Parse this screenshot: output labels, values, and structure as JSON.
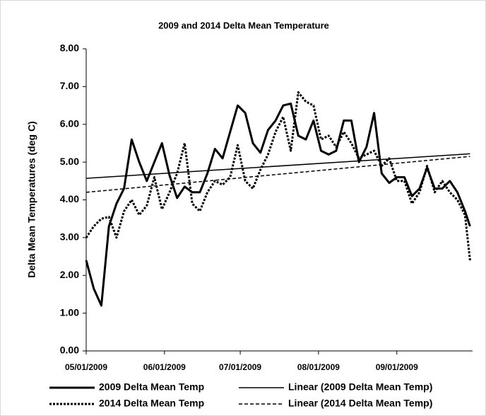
{
  "chart_data": {
    "type": "line",
    "title": "2009 and 2014 Delta Mean Temperature",
    "y_label": "Delta Mean Temperatures (deg C)",
    "x": [
      "05/01/2009",
      "05/04/2009",
      "05/07/2009",
      "05/10/2009",
      "05/13/2009",
      "05/16/2009",
      "05/19/2009",
      "05/22/2009",
      "05/25/2009",
      "05/28/2009",
      "05/31/2009",
      "06/03/2009",
      "06/06/2009",
      "06/09/2009",
      "06/12/2009",
      "06/15/2009",
      "06/18/2009",
      "06/21/2009",
      "06/24/2009",
      "06/27/2009",
      "06/30/2009",
      "07/03/2009",
      "07/06/2009",
      "07/09/2009",
      "07/12/2009",
      "07/15/2009",
      "07/18/2009",
      "07/21/2009",
      "07/24/2009",
      "07/27/2009",
      "07/30/2009",
      "08/02/2009",
      "08/05/2009",
      "08/08/2009",
      "08/11/2009",
      "08/14/2009",
      "08/17/2009",
      "08/20/2009",
      "08/23/2009",
      "08/26/2009",
      "08/29/2009",
      "09/01/2009",
      "09/04/2009",
      "09/07/2009",
      "09/10/2009",
      "09/13/2009",
      "09/16/2009",
      "09/19/2009",
      "09/22/2009",
      "09/25/2009",
      "09/28/2009",
      "09/30/2009"
    ],
    "series": [
      {
        "name": "2009 Delta Mean Temp",
        "color": "#000000",
        "width": 3,
        "dash": "none",
        "values": [
          2.4,
          1.65,
          1.2,
          3.3,
          3.9,
          4.3,
          5.6,
          5.0,
          4.5,
          5.0,
          5.5,
          4.65,
          4.05,
          4.35,
          4.2,
          4.2,
          4.7,
          5.35,
          5.1,
          5.8,
          6.5,
          6.3,
          5.5,
          5.25,
          5.85,
          6.1,
          6.5,
          6.55,
          5.7,
          5.6,
          6.1,
          5.3,
          5.2,
          5.3,
          6.1,
          6.1,
          5.0,
          5.4,
          6.3,
          4.7,
          4.45,
          4.6,
          4.6,
          4.1,
          4.3,
          4.85,
          4.3,
          4.3,
          4.5,
          4.2,
          3.7,
          3.3
        ]
      },
      {
        "name": "Linear (2009 Delta Mean Temp)",
        "color": "#000000",
        "width": 1.5,
        "dash": "none",
        "x": [
          "05/01/2009",
          "09/30/2009"
        ],
        "values": [
          4.57,
          5.22
        ]
      },
      {
        "name": "2014 Delta Mean Temp",
        "color": "#000000",
        "width": 3,
        "dash": "3 2",
        "values": [
          3.0,
          3.3,
          3.5,
          3.55,
          3.0,
          3.7,
          4.0,
          3.6,
          3.85,
          4.6,
          3.75,
          4.2,
          4.7,
          5.5,
          3.9,
          3.7,
          4.2,
          4.5,
          4.4,
          4.6,
          5.45,
          4.5,
          4.3,
          4.8,
          5.2,
          5.8,
          6.2,
          5.3,
          6.85,
          6.6,
          6.5,
          5.6,
          5.7,
          5.4,
          5.8,
          5.5,
          5.1,
          5.2,
          5.3,
          4.9,
          5.1,
          4.5,
          4.5,
          3.9,
          4.2,
          4.9,
          4.2,
          4.5,
          4.2,
          4.0,
          3.6,
          2.4
        ]
      },
      {
        "name": "Linear (2014 Delta Mean Temp)",
        "color": "#000000",
        "width": 1.5,
        "dash": "5 3",
        "x": [
          "05/01/2009",
          "09/30/2009"
        ],
        "values": [
          4.2,
          5.15
        ]
      }
    ],
    "xlim": [
      "05/01/2009",
      "10/01/2009"
    ],
    "xticks": [
      "05/01/2009",
      "06/01/2009",
      "07/01/2009",
      "08/01/2009",
      "09/01/2009"
    ],
    "ylim": [
      0,
      8
    ],
    "yticks": [
      {
        "value": 0,
        "label": "0.00"
      },
      {
        "value": 1,
        "label": "1.00"
      },
      {
        "value": 2,
        "label": "2.00"
      },
      {
        "value": 3,
        "label": "3.00"
      },
      {
        "value": 4,
        "label": "4.00"
      },
      {
        "value": 5,
        "label": "5.00"
      },
      {
        "value": 6,
        "label": "6.00"
      },
      {
        "value": 7,
        "label": "7.00"
      },
      {
        "value": 8,
        "label": "8.00"
      }
    ],
    "grid": false,
    "legend": "bottom"
  }
}
